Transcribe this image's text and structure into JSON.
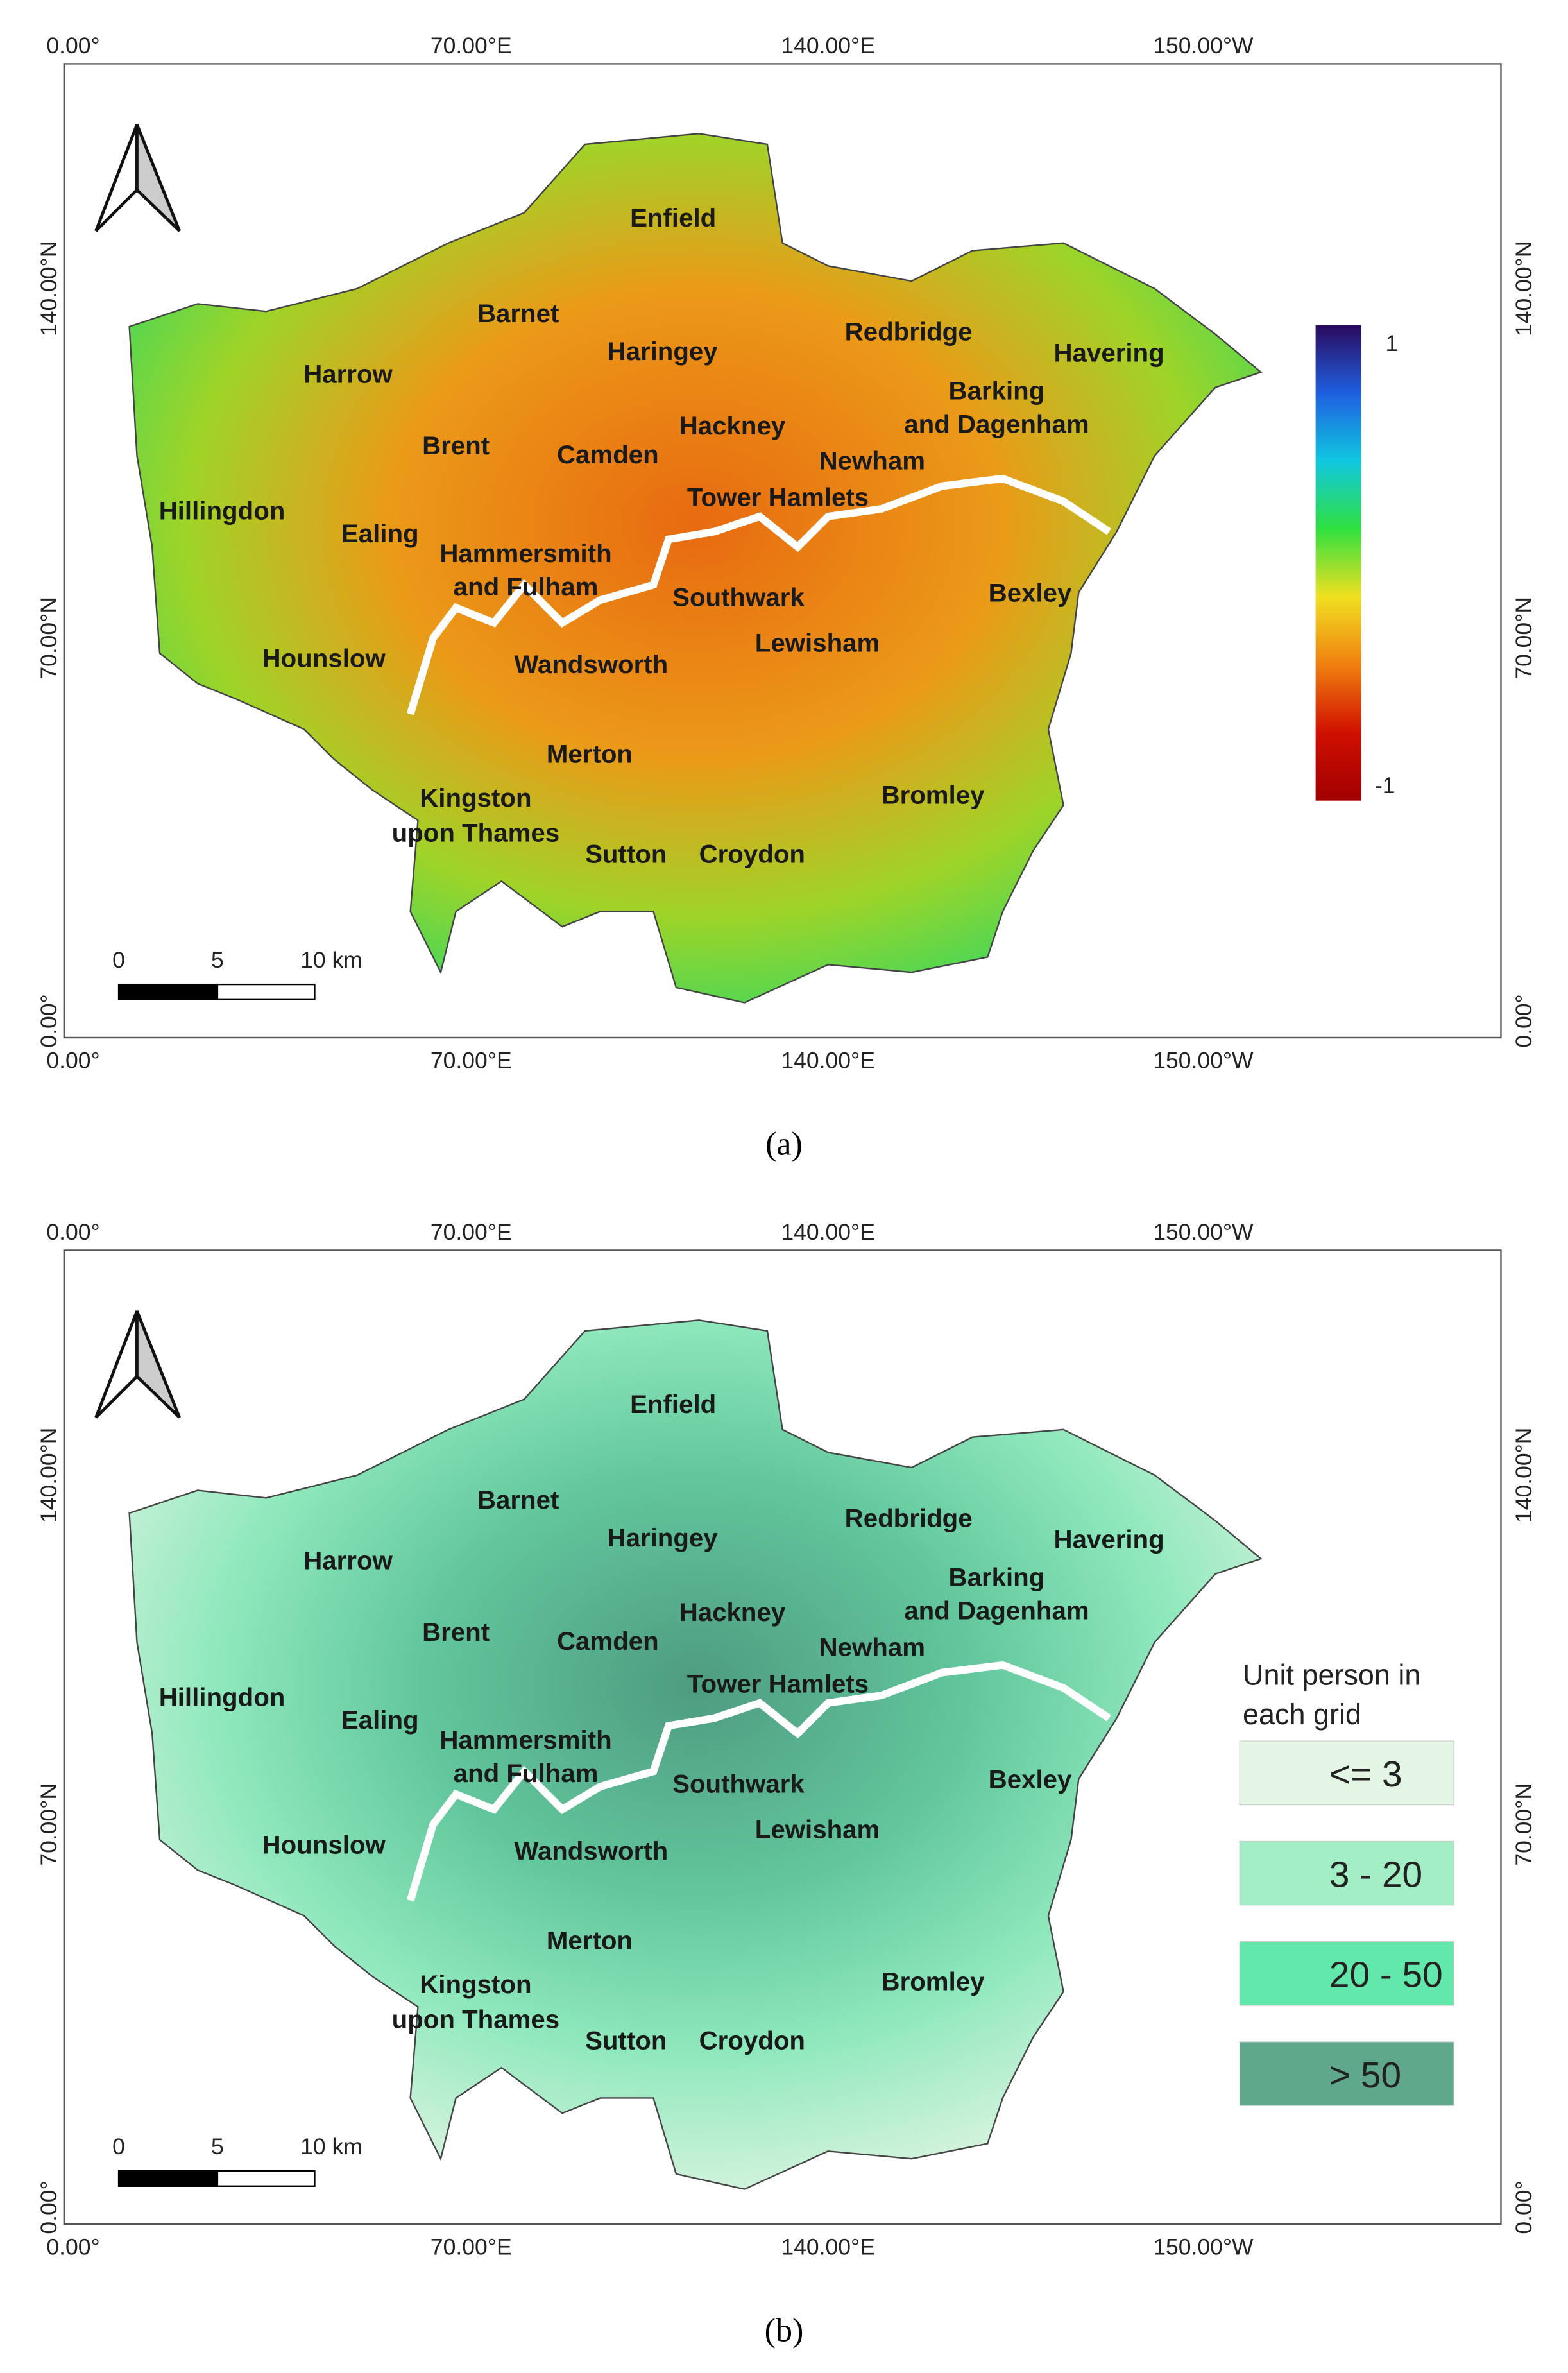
{
  "panels": [
    {
      "caption": "(a)",
      "top_labels": [
        "0.00°",
        "70.00°E",
        "140.00°E",
        "150.00°W"
      ],
      "bottom_labels": [
        "0.00°",
        "70.00°E",
        "140.00°E",
        "150.00°W"
      ],
      "left_labels": [
        "140.00°N",
        "70.00°N",
        "0.00°"
      ],
      "right_labels": [
        "140.00°N",
        "70.00°N",
        "0.00°"
      ],
      "boroughs": [
        [
          "Enfield"
        ],
        [
          "Barnet"
        ],
        [
          "Haringey"
        ],
        [
          "Redbridge"
        ],
        [
          "Havering"
        ],
        [
          "Harrow"
        ],
        [
          "Barking",
          "and Dagenham"
        ],
        [
          "Hackney"
        ],
        [
          "Brent"
        ],
        [
          "Camden"
        ],
        [
          "Newham"
        ],
        [
          "Tower Hamlets"
        ],
        [
          "Hillingdon"
        ],
        [
          "Ealing"
        ],
        [
          "Hammersmith",
          "and Fulham"
        ],
        [
          "Southwark"
        ],
        [
          "Bexley"
        ],
        [
          "Hounslow"
        ],
        [
          "Wandsworth"
        ],
        [
          "Lewisham"
        ],
        [
          "Merton"
        ],
        [
          "Bromley"
        ],
        [
          "Kingston",
          "upon Thames"
        ],
        [
          "Sutton"
        ],
        [
          "Croydon"
        ]
      ],
      "scale_bar": [
        "0",
        "5",
        "10 km"
      ],
      "colorbar": {
        "labels": [
          "1",
          "-1"
        ],
        "colors": [
          "#2a0a5e",
          "#1f5fe0",
          "#10c8e0",
          "#30e040",
          "#f0e020",
          "#f08010",
          "#d01000",
          "#a00000"
        ]
      }
    },
    {
      "caption": "(b)",
      "top_labels": [
        "0.00°",
        "70.00°E",
        "140.00°E",
        "150.00°W"
      ],
      "bottom_labels": [
        "0.00°",
        "70.00°E",
        "140.00°E",
        "150.00°W"
      ],
      "left_labels": [
        "140.00°N",
        "70.00°N",
        "0.00°"
      ],
      "right_labels": [
        "140.00°N",
        "70.00°N",
        "0.00°"
      ],
      "boroughs": [
        [
          "Enfield"
        ],
        [
          "Barnet"
        ],
        [
          "Haringey"
        ],
        [
          "Redbridge"
        ],
        [
          "Havering"
        ],
        [
          "Harrow"
        ],
        [
          "Barking",
          "and Dagenham"
        ],
        [
          "Hackney"
        ],
        [
          "Brent"
        ],
        [
          "Camden"
        ],
        [
          "Newham"
        ],
        [
          "Tower Hamlets"
        ],
        [
          "Hillingdon"
        ],
        [
          "Ealing"
        ],
        [
          "Hammersmith",
          "and Fulham"
        ],
        [
          "Southwark"
        ],
        [
          "Bexley"
        ],
        [
          "Hounslow"
        ],
        [
          "Wandsworth"
        ],
        [
          "Lewisham"
        ],
        [
          "Merton"
        ],
        [
          "Bromley"
        ],
        [
          "Kingston",
          "upon Thames"
        ],
        [
          "Sutton"
        ],
        [
          "Croydon"
        ]
      ],
      "scale_bar": [
        "0",
        "5",
        "10 km"
      ],
      "legend": {
        "title": [
          "Unit person in",
          "each grid"
        ],
        "items": [
          {
            "label": "<= 3",
            "color": "#e3f6e6"
          },
          {
            "label": "3 - 20",
            "color": "#a3eec4"
          },
          {
            "label": "20 - 50",
            "color": "#62e8aa"
          },
          {
            "label": "> 50",
            "color": "#5fa88c"
          }
        ]
      }
    }
  ]
}
